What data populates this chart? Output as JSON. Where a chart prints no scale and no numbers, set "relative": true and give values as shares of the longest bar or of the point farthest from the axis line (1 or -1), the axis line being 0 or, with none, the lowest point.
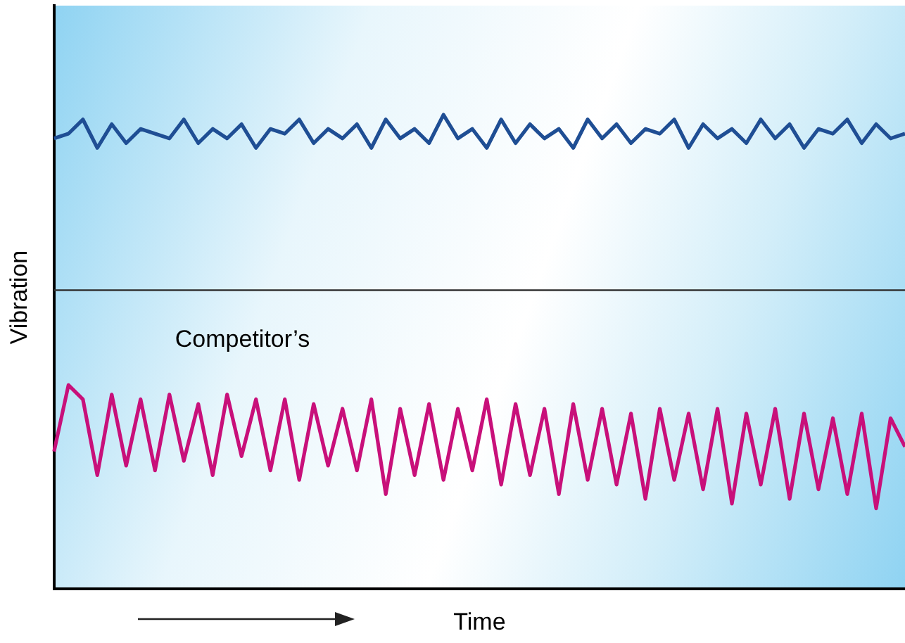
{
  "chart_data": {
    "type": "line",
    "relative": true,
    "xlabel": "Time",
    "ylabel": "Vibration",
    "legend": false,
    "grid": false,
    "marker": "none",
    "line_style": "solid",
    "categories": [
      null,
      null,
      null,
      null,
      null,
      null,
      null,
      null,
      null,
      null,
      null,
      null,
      null,
      null,
      null,
      null,
      null,
      null,
      null,
      null,
      null,
      null,
      null,
      null,
      null,
      null,
      null,
      null,
      null,
      null,
      null,
      null,
      null,
      null,
      null,
      null,
      null,
      null,
      null,
      null,
      null,
      null,
      null,
      null,
      null,
      null,
      null,
      null,
      null,
      null,
      null,
      null,
      null,
      null,
      null,
      null,
      null,
      null,
      null,
      null
    ],
    "series": [
      {
        "color": "#1f4e94",
        "values": [
          0.95,
          0.96,
          0.99,
          0.93,
          0.98,
          0.94,
          0.97,
          0.96,
          0.95,
          0.99,
          0.94,
          0.97,
          0.95,
          0.98,
          0.93,
          0.97,
          0.96,
          0.99,
          0.94,
          0.97,
          0.95,
          0.98,
          0.93,
          0.99,
          0.95,
          0.97,
          0.94,
          1.0,
          0.95,
          0.97,
          0.93,
          0.99,
          0.94,
          0.98,
          0.95,
          0.97,
          0.93,
          0.99,
          0.95,
          0.98,
          0.94,
          0.97,
          0.96,
          0.99,
          0.93,
          0.98,
          0.95,
          0.97,
          0.94,
          0.99,
          0.95,
          0.98,
          0.93,
          0.97,
          0.96,
          0.99,
          0.94,
          0.98,
          0.95,
          0.96
        ]
      },
      {
        "name": "Competitor’s",
        "color": "#c8107a",
        "values": [
          0.29,
          0.43,
          0.4,
          0.24,
          0.41,
          0.26,
          0.4,
          0.25,
          0.41,
          0.27,
          0.39,
          0.24,
          0.41,
          0.28,
          0.4,
          0.25,
          0.4,
          0.23,
          0.39,
          0.26,
          0.38,
          0.25,
          0.4,
          0.2,
          0.38,
          0.24,
          0.39,
          0.23,
          0.38,
          0.25,
          0.4,
          0.22,
          0.39,
          0.24,
          0.38,
          0.2,
          0.39,
          0.23,
          0.38,
          0.22,
          0.37,
          0.19,
          0.38,
          0.23,
          0.37,
          0.21,
          0.38,
          0.18,
          0.37,
          0.22,
          0.38,
          0.19,
          0.37,
          0.21,
          0.36,
          0.2,
          0.37,
          0.17,
          0.36,
          0.3
        ]
      }
    ],
    "ref_lines": [
      {
        "axis": "y",
        "value": 0.63,
        "color": "#333333"
      }
    ]
  }
}
